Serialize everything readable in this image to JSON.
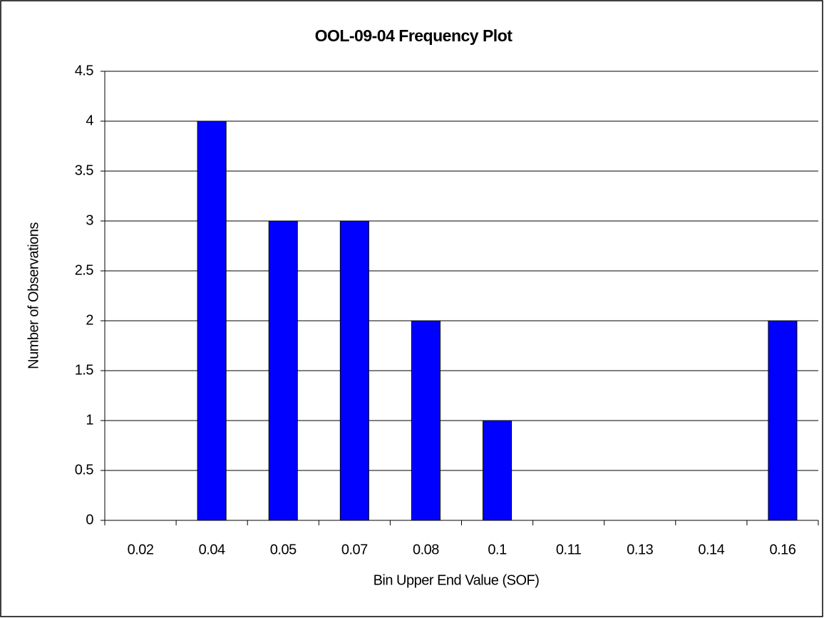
{
  "chart_data": {
    "type": "bar",
    "title": "OOL-09-04 Frequency Plot",
    "x_label": "Bin Upper End Value (SOF)",
    "y_label": "Number of Observations",
    "categories": [
      "0.02",
      "0.04",
      "0.05",
      "0.07",
      "0.08",
      "0.1",
      "0.11",
      "0.13",
      "0.14",
      "0.16"
    ],
    "values": [
      0,
      4,
      3,
      3,
      2,
      1,
      0,
      0,
      0,
      2
    ],
    "color": "#0000ff",
    "ylim": [
      0,
      4.5
    ],
    "yticks": [
      0,
      0.5,
      1,
      1.5,
      2,
      2.5,
      3,
      3.5,
      4,
      4.5
    ],
    "grid": true
  }
}
